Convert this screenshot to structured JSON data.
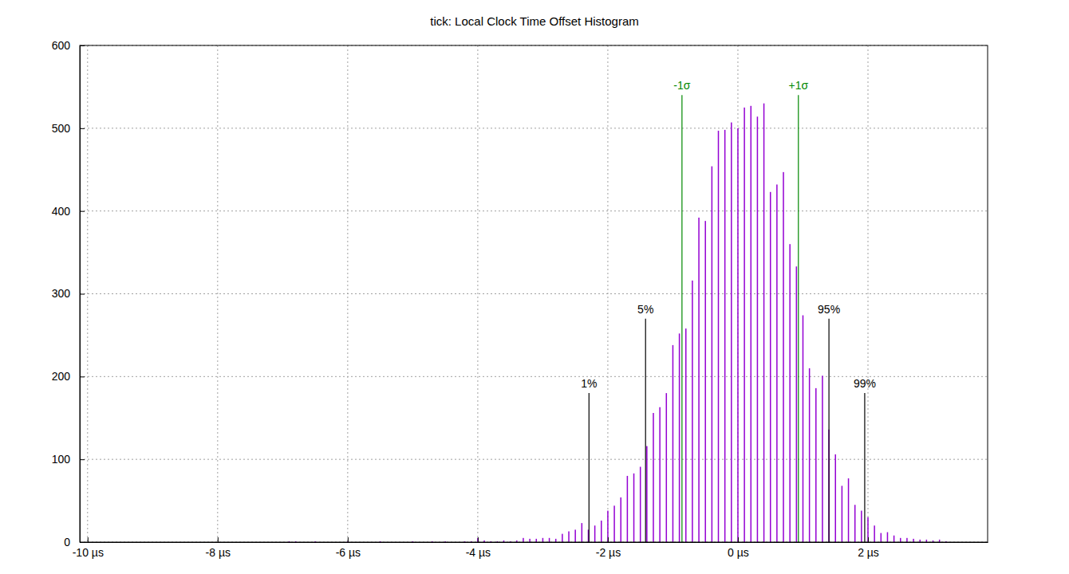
{
  "chart_data": {
    "type": "bar",
    "title": "tick: Local Clock Time Offset Histogram",
    "color": "#9400d3",
    "grid": true,
    "xlim": [
      -10.12,
      3.84
    ],
    "ylim": [
      0,
      600
    ],
    "xticks": [
      {
        "value": -10,
        "label": "-10 µs"
      },
      {
        "value": -8,
        "label": "-8 µs"
      },
      {
        "value": -6,
        "label": "-6 µs"
      },
      {
        "value": -4,
        "label": "-4 µs"
      },
      {
        "value": -2,
        "label": "-2 µs"
      },
      {
        "value": 0,
        "label": "0 µs"
      },
      {
        "value": 2,
        "label": "2 µs"
      }
    ],
    "yticks": [
      0,
      100,
      200,
      300,
      400,
      500,
      600
    ],
    "x": [
      -6.9,
      -6.8,
      -6.5,
      -6.0,
      -5.5,
      -5.0,
      -4.7,
      -4.5,
      -4.2,
      -4.1,
      -4.0,
      -3.9,
      -3.8,
      -3.7,
      -3.6,
      -3.5,
      -3.4,
      -3.3,
      -3.2,
      -3.1,
      -3.0,
      -2.9,
      -2.8,
      -2.7,
      -2.6,
      -2.5,
      -2.4,
      -2.3,
      -2.2,
      -2.1,
      -2.0,
      -1.9,
      -1.8,
      -1.7,
      -1.6,
      -1.5,
      -1.4,
      -1.3,
      -1.2,
      -1.1,
      -1.0,
      -0.9,
      -0.8,
      -0.7,
      -0.6,
      -0.5,
      -0.4,
      -0.3,
      -0.2,
      -0.1,
      0.0,
      0.1,
      0.2,
      0.3,
      0.4,
      0.5,
      0.6,
      0.7,
      0.8,
      0.9,
      1.0,
      1.1,
      1.2,
      1.3,
      1.4,
      1.5,
      1.6,
      1.7,
      1.8,
      1.9,
      2.0,
      2.1,
      2.2,
      2.3,
      2.4,
      2.5,
      2.6,
      2.7,
      2.8,
      2.9,
      3.0,
      3.1,
      3.2
    ],
    "values": [
      1,
      1,
      1,
      1,
      1,
      1,
      1,
      1,
      1,
      1,
      5,
      2,
      1,
      1,
      2,
      1,
      2,
      5,
      4,
      4,
      5,
      5,
      4,
      10,
      13,
      15,
      23,
      15,
      20,
      26,
      38,
      44,
      54,
      80,
      83,
      91,
      116,
      156,
      163,
      180,
      238,
      252,
      258,
      316,
      392,
      388,
      454,
      497,
      498,
      507,
      500,
      525,
      527,
      514,
      530,
      423,
      432,
      447,
      360,
      333,
      274,
      210,
      186,
      201,
      136,
      106,
      68,
      77,
      45,
      38,
      30,
      20,
      11,
      12,
      8,
      5,
      5,
      4,
      3,
      3,
      2,
      3,
      1
    ],
    "annotations": [
      {
        "text": "1%",
        "x": -2.29,
        "y": 180,
        "color": "#000000"
      },
      {
        "text": "5%",
        "x": -1.42,
        "y": 270,
        "color": "#000000"
      },
      {
        "text": "-1σ",
        "x": -0.86,
        "y": 540,
        "color": "#008800"
      },
      {
        "text": "+1σ",
        "x": 0.93,
        "y": 540,
        "color": "#008800"
      },
      {
        "text": "95%",
        "x": 1.4,
        "y": 270,
        "color": "#000000"
      },
      {
        "text": "99%",
        "x": 1.95,
        "y": 180,
        "color": "#000000"
      }
    ]
  }
}
